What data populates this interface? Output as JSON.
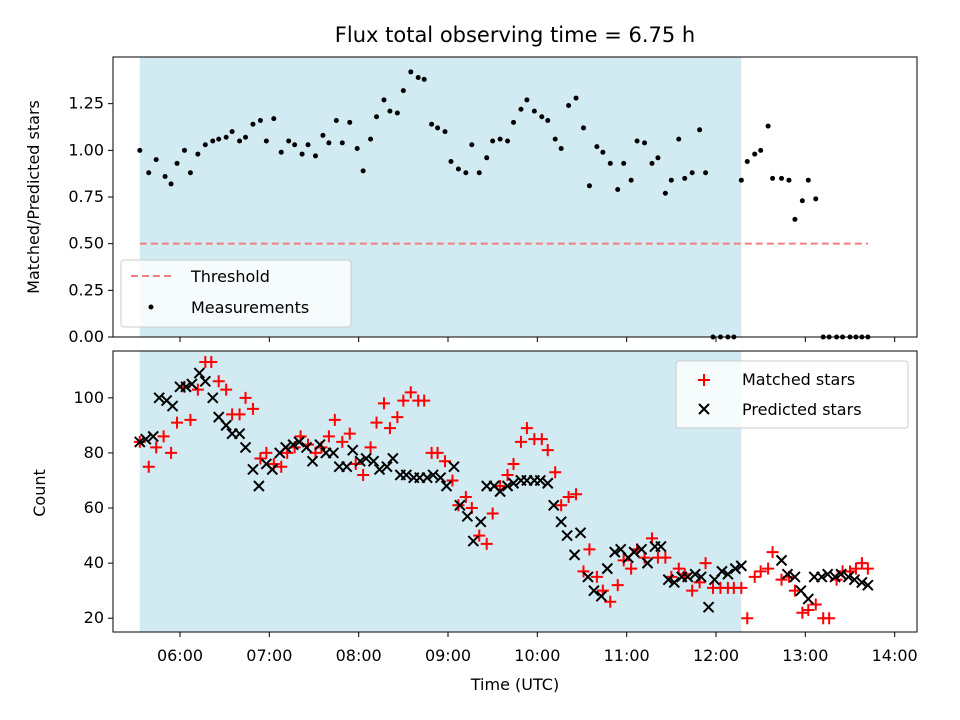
{
  "title": "Flux total observing time = 6.75 h",
  "colors": {
    "shade": "#add8e6",
    "threshold": "#f08080",
    "measurement": "#000000",
    "matched": "#ff0000",
    "predicted": "#000000"
  },
  "top": {
    "ylabel": "Matched/Predicted stars",
    "yticks": [
      "0.00",
      "0.25",
      "0.50",
      "0.75",
      "1.00",
      "1.25"
    ],
    "legend": {
      "threshold": "Threshold",
      "measurements": "Measurements"
    }
  },
  "bottom": {
    "ylabel": "Count",
    "yticks": [
      "20",
      "40",
      "60",
      "80",
      "100"
    ],
    "legend": {
      "matched": "Matched stars",
      "predicted": "Predicted stars"
    }
  },
  "xlabel": "Time (UTC)",
  "xticks": [
    "06:00",
    "07:00",
    "08:00",
    "09:00",
    "10:00",
    "11:00",
    "12:00",
    "13:00",
    "14:00"
  ],
  "chart_data": [
    {
      "type": "scatter",
      "title": "Flux total observing time = 6.75 h",
      "xlabel": "",
      "ylabel": "Matched/Predicted stars",
      "xlim": [
        "05:15",
        "14:15"
      ],
      "ylim": [
        0,
        1.5
      ],
      "shaded_span": [
        "05:33",
        "12:17"
      ],
      "threshold": {
        "name": "Threshold",
        "x": [
          "05:33",
          "13:42"
        ],
        "y": 0.5
      },
      "series": [
        {
          "name": "Measurements",
          "x": [
            "05:33",
            "05:39",
            "05:44",
            "05:50",
            "05:54",
            "05:58",
            "06:03",
            "06:07",
            "06:12",
            "06:17",
            "06:22",
            "06:26",
            "06:31",
            "06:35",
            "06:40",
            "06:44",
            "06:49",
            "06:54",
            "06:58",
            "07:03",
            "07:08",
            "07:13",
            "07:17",
            "07:22",
            "07:26",
            "07:31",
            "07:36",
            "07:40",
            "07:45",
            "07:49",
            "07:54",
            "07:59",
            "08:03",
            "08:08",
            "08:12",
            "08:17",
            "08:21",
            "08:26",
            "08:30",
            "08:35",
            "08:40",
            "08:44",
            "08:49",
            "08:53",
            "08:58",
            "09:02",
            "09:07",
            "09:12",
            "09:16",
            "09:21",
            "09:26",
            "09:30",
            "09:35",
            "09:40",
            "09:44",
            "09:49",
            "09:53",
            "09:58",
            "10:03",
            "10:07",
            "10:12",
            "10:16",
            "10:21",
            "10:26",
            "10:31",
            "10:35",
            "10:40",
            "10:44",
            "10:49",
            "10:54",
            "10:58",
            "11:03",
            "11:07",
            "11:12",
            "11:17",
            "11:21",
            "11:26",
            "11:30",
            "11:35",
            "11:39",
            "11:44",
            "11:49",
            "11:53",
            "11:58",
            "12:03",
            "12:08",
            "12:12",
            "12:17",
            "12:21",
            "12:26",
            "12:30",
            "12:35",
            "12:38",
            "12:44",
            "12:49",
            "12:53",
            "12:58",
            "13:02",
            "13:07",
            "13:12",
            "13:16",
            "13:21",
            "13:25",
            "13:30",
            "13:34",
            "13:38",
            "13:42"
          ],
          "y": [
            1.0,
            0.88,
            0.95,
            0.86,
            0.82,
            0.93,
            1.0,
            0.88,
            0.98,
            1.03,
            1.05,
            1.06,
            1.07,
            1.1,
            1.05,
            1.07,
            1.14,
            1.16,
            1.05,
            1.17,
            0.99,
            1.05,
            1.03,
            0.98,
            1.03,
            0.97,
            1.08,
            1.04,
            1.16,
            1.04,
            1.15,
            1.01,
            0.89,
            1.06,
            1.18,
            1.27,
            1.21,
            1.2,
            1.32,
            1.42,
            1.39,
            1.38,
            1.14,
            1.12,
            1.1,
            0.94,
            0.9,
            0.88,
            1.03,
            0.88,
            0.96,
            1.05,
            1.06,
            1.05,
            1.15,
            1.22,
            1.27,
            1.21,
            1.18,
            1.16,
            1.06,
            1.01,
            1.24,
            1.28,
            1.12,
            0.81,
            1.02,
            0.99,
            0.93,
            0.79,
            0.93,
            0.84,
            1.05,
            1.04,
            0.93,
            0.96,
            0.77,
            0.84,
            1.06,
            0.85,
            0.88,
            1.11,
            0.88,
            0.0,
            0.0,
            0.0,
            0.0,
            0.84,
            0.94,
            0.98,
            1.0,
            1.13,
            0.85,
            0.85,
            0.84,
            0.63,
            0.73,
            0.84,
            0.74,
            0.0,
            0.0,
            0.0,
            0.0,
            0.0,
            0.0,
            0.0,
            0.0
          ]
        }
      ]
    },
    {
      "type": "scatter",
      "xlabel": "Time (UTC)",
      "ylabel": "Count",
      "xlim": [
        "05:15",
        "14:15"
      ],
      "ylim": [
        15,
        117
      ],
      "shaded_span": [
        "05:33",
        "12:17"
      ],
      "series": [
        {
          "name": "Matched stars",
          "marker": "+",
          "x": [
            "05:33",
            "05:39",
            "05:44",
            "05:49",
            "05:54",
            "05:58",
            "06:03",
            "06:07",
            "06:12",
            "06:17",
            "06:21",
            "06:26",
            "06:31",
            "06:35",
            "06:40",
            "06:44",
            "06:49",
            "06:54",
            "06:58",
            "07:03",
            "07:08",
            "07:12",
            "07:17",
            "07:21",
            "07:26",
            "07:31",
            "07:35",
            "07:40",
            "07:44",
            "07:49",
            "07:54",
            "07:58",
            "08:03",
            "08:08",
            "08:12",
            "08:17",
            "08:21",
            "08:26",
            "08:30",
            "08:35",
            "08:40",
            "08:44",
            "08:49",
            "08:53",
            "08:58",
            "09:03",
            "09:07",
            "09:12",
            "09:16",
            "09:21",
            "09:26",
            "09:30",
            "09:35",
            "09:40",
            "09:44",
            "09:49",
            "09:53",
            "09:58",
            "10:03",
            "10:07",
            "10:12",
            "10:16",
            "10:21",
            "10:26",
            "10:31",
            "10:35",
            "10:40",
            "10:44",
            "10:49",
            "10:54",
            "10:58",
            "11:03",
            "11:07",
            "11:12",
            "11:17",
            "11:21",
            "11:26",
            "11:30",
            "11:35",
            "11:39",
            "11:44",
            "11:49",
            "11:53",
            "11:58",
            "12:03",
            "12:08",
            "12:12",
            "12:17",
            "12:21",
            "12:26",
            "12:30",
            "12:35",
            "12:38",
            "12:44",
            "12:49",
            "12:53",
            "12:58",
            "13:02",
            "13:07",
            "13:12",
            "13:16",
            "13:21",
            "13:25",
            "13:30",
            "13:34",
            "13:38",
            "13:42"
          ],
          "y": [
            84,
            75,
            82,
            86,
            80,
            91,
            104,
            92,
            103,
            113,
            113,
            106,
            103,
            94,
            94,
            100,
            96,
            78,
            80,
            76,
            75,
            80,
            82,
            86,
            83,
            80,
            82,
            86,
            92,
            84,
            87,
            76,
            72,
            82,
            91,
            98,
            89,
            93,
            99,
            102,
            99,
            99,
            80,
            80,
            77,
            70,
            61,
            64,
            60,
            50,
            47,
            58,
            68,
            72,
            76,
            84,
            89,
            85,
            85,
            81,
            73,
            61,
            64,
            65,
            37,
            45,
            35,
            30,
            26,
            32,
            41,
            38,
            45,
            42,
            49,
            42,
            42,
            35,
            38,
            36,
            30,
            33,
            40,
            31,
            31,
            31,
            31,
            31,
            20,
            35,
            37,
            38,
            44,
            34,
            35,
            30,
            22,
            23,
            25,
            20,
            20,
            34,
            37,
            37,
            38,
            40,
            38
          ],
          "y_note": ""
        },
        {
          "name": "Predicted stars",
          "marker": "x",
          "x": [
            "05:33",
            "05:37",
            "05:42",
            "05:46",
            "05:51",
            "05:55",
            "06:00",
            "06:04",
            "06:08",
            "06:13",
            "06:17",
            "06:22",
            "06:26",
            "06:31",
            "06:35",
            "06:40",
            "06:44",
            "06:49",
            "06:53",
            "06:58",
            "07:02",
            "07:07",
            "07:11",
            "07:16",
            "07:20",
            "07:25",
            "07:29",
            "07:34",
            "07:38",
            "07:43",
            "07:47",
            "07:52",
            "07:56",
            "08:01",
            "08:05",
            "08:10",
            "08:14",
            "08:19",
            "08:23",
            "08:28",
            "08:32",
            "08:37",
            "08:41",
            "08:46",
            "08:50",
            "08:55",
            "08:59",
            "09:04",
            "09:08",
            "09:13",
            "09:17",
            "09:22",
            "09:26",
            "09:31",
            "09:35",
            "09:40",
            "09:44",
            "09:49",
            "09:53",
            "09:58",
            "10:02",
            "10:07",
            "10:11",
            "10:16",
            "10:20",
            "10:25",
            "10:29",
            "10:34",
            "10:38",
            "10:43",
            "10:47",
            "10:52",
            "10:56",
            "11:01",
            "11:05",
            "11:10",
            "11:14",
            "11:19",
            "11:23",
            "11:28",
            "11:32",
            "11:37",
            "11:41",
            "11:46",
            "11:50",
            "11:55",
            "11:59",
            "12:04",
            "12:08",
            "12:13",
            "12:17",
            "12:44",
            "12:48",
            "12:53",
            "12:57",
            "13:02",
            "13:06",
            "13:11",
            "13:15",
            "13:20",
            "13:24",
            "13:29",
            "13:33",
            "13:38",
            "13:42"
          ],
          "y": [
            84,
            85,
            86,
            100,
            99,
            97,
            104,
            104,
            105,
            109,
            106,
            100,
            93,
            90,
            87,
            87,
            82,
            74,
            68,
            76,
            74,
            80,
            82,
            83,
            84,
            82,
            77,
            83,
            80,
            80,
            75,
            75,
            81,
            77,
            78,
            77,
            74,
            75,
            78,
            72,
            72,
            71,
            71,
            71,
            72,
            71,
            68,
            75,
            61,
            57,
            48,
            55,
            68,
            68,
            66,
            68,
            69,
            70,
            70,
            70,
            70,
            69,
            61,
            55,
            50,
            43,
            51,
            35,
            30,
            28,
            38,
            44,
            45,
            42,
            44,
            45,
            40,
            46,
            46,
            34,
            33,
            35,
            35,
            36,
            35,
            24,
            34,
            37,
            36,
            38,
            39,
            41,
            36,
            35,
            30,
            27,
            35,
            35,
            36,
            35,
            36,
            35,
            34,
            33,
            32
          ],
          "y_note": ""
        }
      ]
    }
  ]
}
